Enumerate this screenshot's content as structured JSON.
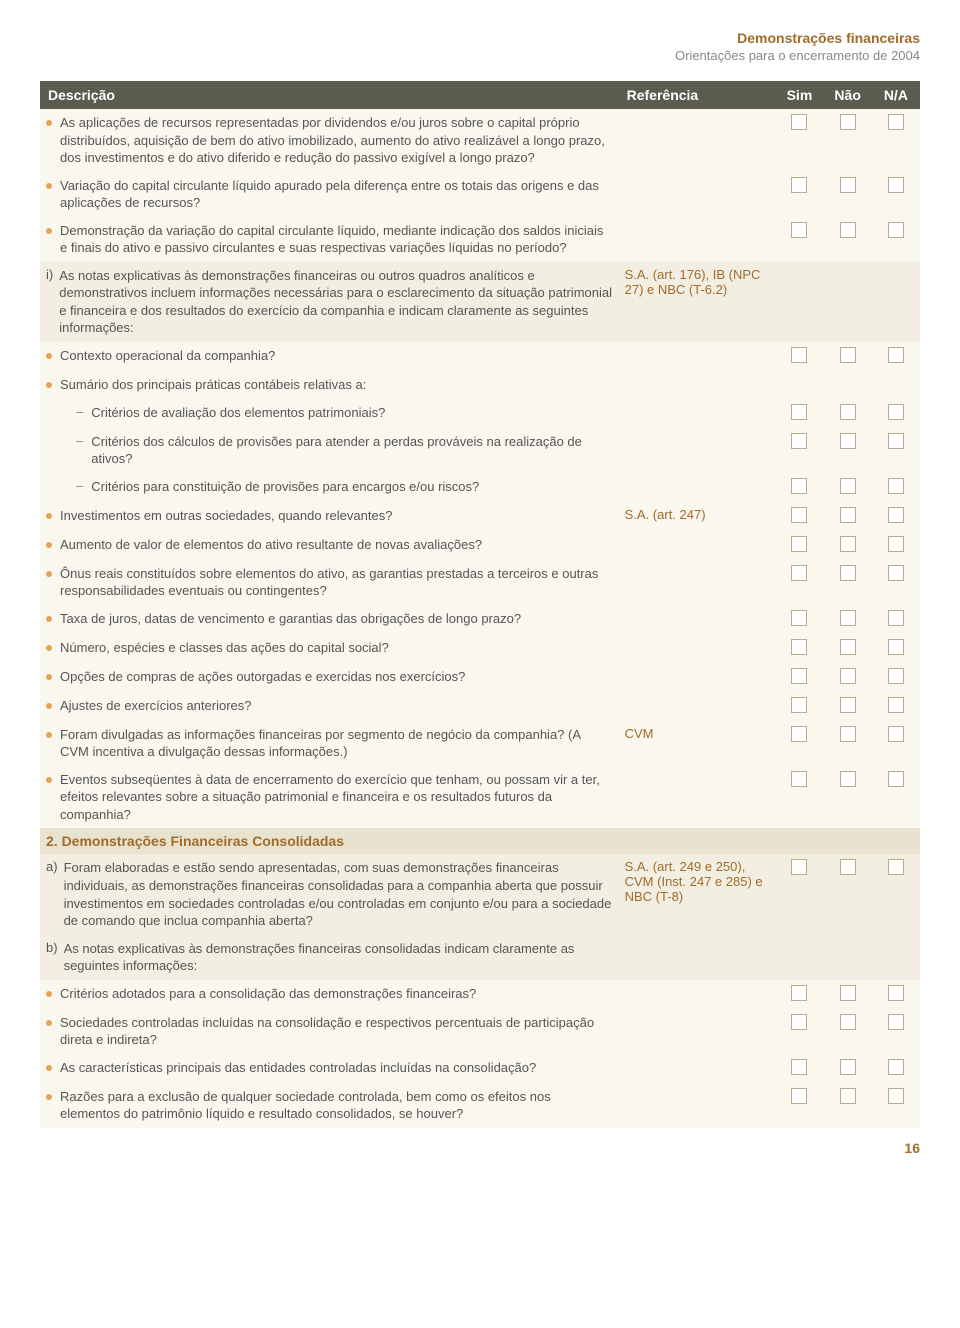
{
  "header": {
    "title": "Demonstrações financeiras",
    "subtitle": "Orientações para o encerramento de 2004"
  },
  "cols": {
    "desc": "Descrição",
    "ref": "Referência",
    "sim": "Sim",
    "nao": "Não",
    "na": "N/A"
  },
  "section2": "2. Demonstrações Financeiras Consolidadas",
  "pageNum": "16",
  "rows": [
    {
      "t": "b",
      "txt": "As aplicações de recursos representadas por dividendos e/ou juros sobre o capital próprio distribuídos, aquisição de bem do ativo imobilizado, aumento do ativo realizável a longo prazo, dos investimentos e do ativo diferido e redução do passivo exigível a longo prazo?",
      "cb": true,
      "bg": "L"
    },
    {
      "t": "b",
      "txt": "Variação do capital circulante líquido apurado pela diferença entre os totais das origens e das aplicações de recursos?",
      "cb": true,
      "bg": "L"
    },
    {
      "t": "b",
      "txt": "Demonstração da variação do capital circulante líquido, mediante indicação dos saldos iniciais e finais do ativo e passivo circulantes e suas respectivas variações líquidas no período?",
      "cb": true,
      "bg": "L"
    },
    {
      "t": "l",
      "lbl": "i)",
      "txt": "As notas explicativas às demonstrações financeiras ou outros quadros analíticos e demonstrativos incluem informações necessárias para o esclarecimento da situação patrimonial e financeira e dos resultados do exercício da companhia e indicam claramente as seguintes informações:",
      "ref": "S.A. (art. 176), IB (NPC 27) e NBC (T-6.2)",
      "cb": false,
      "bg": "D"
    },
    {
      "t": "b",
      "txt": "Contexto operacional da companhia?",
      "cb": true,
      "bg": "L"
    },
    {
      "t": "b",
      "txt": "Sumário dos principais práticas contábeis relativas a:",
      "cb": false,
      "bg": "L"
    },
    {
      "t": "d",
      "txt": "Critérios de avaliação dos elementos patrimoniais?",
      "cb": true,
      "bg": "L"
    },
    {
      "t": "d",
      "txt": "Critérios dos cálculos de provisões para atender a perdas prováveis na realização de ativos?",
      "cb": true,
      "bg": "L"
    },
    {
      "t": "d",
      "txt": "Critérios para constituição de provisões para encargos e/ou riscos?",
      "cb": true,
      "bg": "L"
    },
    {
      "t": "b",
      "txt": "Investimentos em outras sociedades, quando relevantes?",
      "ref": "S.A. (art. 247)",
      "cb": true,
      "bg": "L"
    },
    {
      "t": "b",
      "txt": "Aumento de valor de elementos do ativo resultante de novas avaliações?",
      "cb": true,
      "bg": "L"
    },
    {
      "t": "b",
      "txt": "Ônus reais constituídos sobre elementos do ativo, as garantias prestadas a terceiros e outras responsabilidades eventuais ou contingentes?",
      "cb": true,
      "bg": "L"
    },
    {
      "t": "b",
      "txt": "Taxa de juros, datas de vencimento e garantias das obrigações de longo prazo?",
      "cb": true,
      "bg": "L"
    },
    {
      "t": "b",
      "txt": "Número, espécies e classes das ações do capital social?",
      "cb": true,
      "bg": "L"
    },
    {
      "t": "b",
      "txt": "Opções de compras de ações outorgadas e exercidas nos exercícios?",
      "cb": true,
      "bg": "L"
    },
    {
      "t": "b",
      "txt": "Ajustes de exercícios anteriores?",
      "cb": true,
      "bg": "L"
    },
    {
      "t": "b",
      "txt": "Foram divulgadas as informações financeiras por segmento de negócio da companhia? (A CVM incentiva a divulgação dessas informações.)",
      "ref": "CVM",
      "cb": true,
      "bg": "L"
    },
    {
      "t": "b",
      "txt": "Eventos subseqüentes à data de encerramento do exercício que tenham, ou possam vir a ter, efeitos relevantes sobre a situação patrimonial e financeira e os resultados futuros da companhia?",
      "cb": true,
      "bg": "L"
    }
  ],
  "rows2": [
    {
      "t": "l",
      "lbl": "a)",
      "txt": "Foram elaboradas e estão sendo apresentadas, com suas demonstrações financeiras individuais, as demonstrações financeiras consolidadas para a companhia aberta que possuir investimentos em sociedades controladas e/ou controladas em conjunto e/ou para a sociedade de comando que inclua companhia aberta?",
      "ref": "S.A. (art. 249 e 250), CVM (Inst. 247 e 285) e NBC (T-8)",
      "cb": true,
      "bg": "D"
    },
    {
      "t": "l",
      "lbl": "b)",
      "txt": "As notas explicativas às demonstrações financeiras consolidadas indicam claramente as seguintes informações:",
      "cb": false,
      "bg": "D"
    },
    {
      "t": "b",
      "txt": "Critérios adotados para a consolidação das demonstrações financeiras?",
      "cb": true,
      "bg": "L"
    },
    {
      "t": "b",
      "txt": "Sociedades controladas incluídas na consolidação e respectivos percentuais de participação direta e indireta?",
      "cb": true,
      "bg": "L"
    },
    {
      "t": "b",
      "txt": "As características principais das entidades controladas incluídas na consolidação?",
      "cb": true,
      "bg": "L"
    },
    {
      "t": "b",
      "txt": "Razões para a exclusão de qualquer sociedade controlada, bem como os efeitos nos elementos do patrimônio líquido e resultado consolidados, se houver?",
      "cb": true,
      "bg": "L"
    }
  ]
}
